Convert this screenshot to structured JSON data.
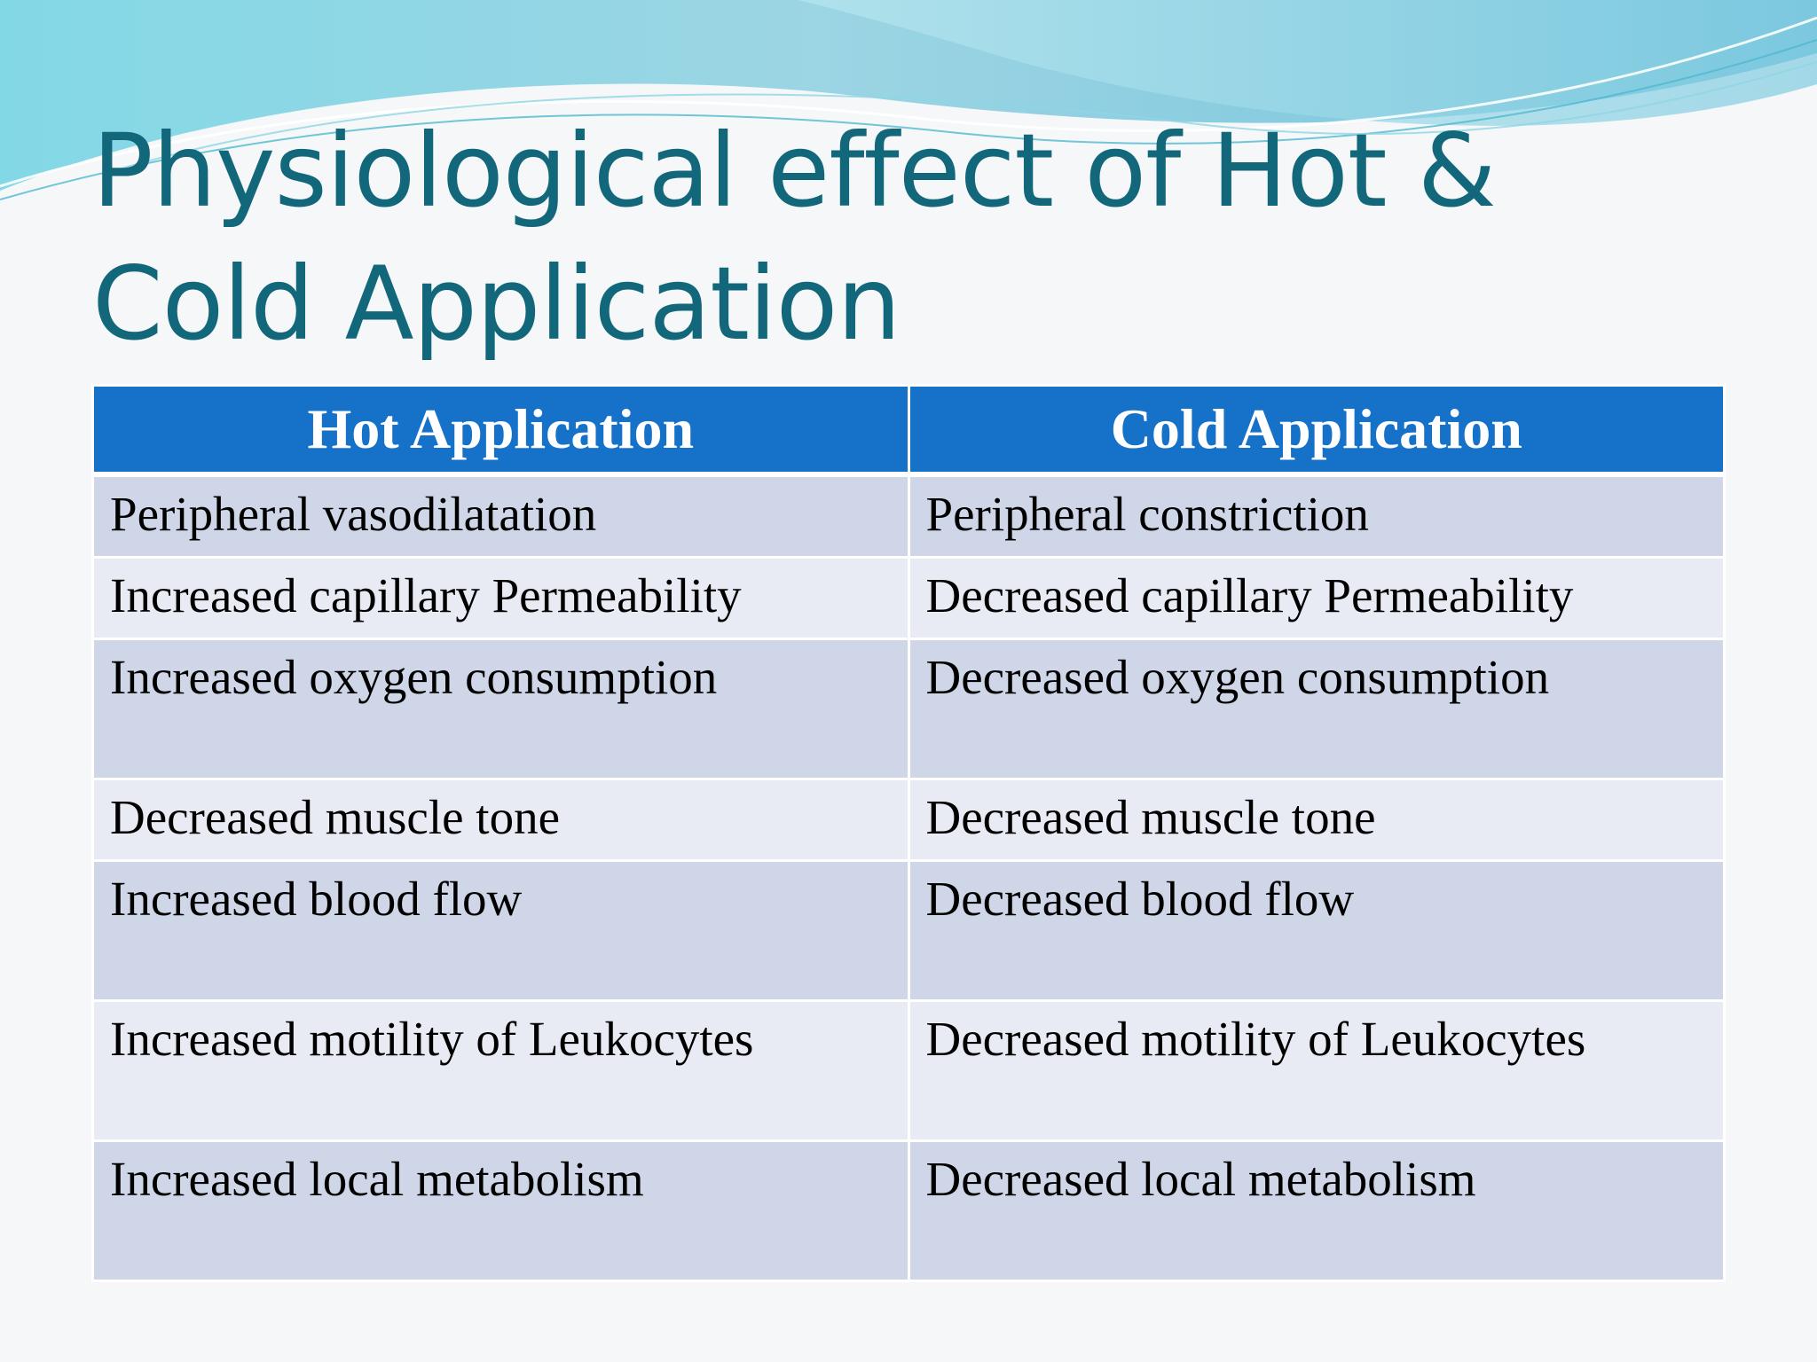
{
  "slide": {
    "title": "Physiological effect of Hot & Cold Application"
  },
  "colors": {
    "title": "#12687a",
    "header_bg": "#1671c8",
    "row_dark": "#cfd6e8",
    "row_light": "#e8ebf4",
    "wave_accent": "#5fc7d8"
  },
  "table": {
    "headers": [
      "Hot Application",
      "Cold Application"
    ],
    "rows": [
      [
        "Peripheral vasodilatation",
        "Peripheral constriction"
      ],
      [
        "Increased capillary Permeability",
        "Decreased capillary Permeability"
      ],
      [
        "Increased oxygen consumption",
        "Decreased oxygen consumption"
      ],
      [
        "Decreased muscle tone",
        "Decreased muscle tone"
      ],
      [
        "Increased blood flow",
        "Decreased blood flow"
      ],
      [
        "Increased motility of Leukocytes",
        "Decreased motility of Leukocytes"
      ],
      [
        "Increased local metabolism",
        "Decreased local metabolism"
      ]
    ]
  }
}
